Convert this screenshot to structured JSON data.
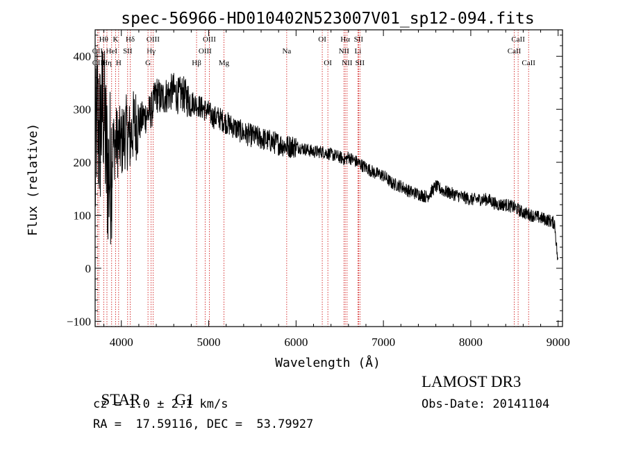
{
  "chart_data": {
    "type": "line",
    "title": "spec-56966-HD010402N523007V01_sp12-094.fits",
    "xlabel": "Wavelength (Å)",
    "ylabel": "Flux (relative)",
    "xlim": [
      3700,
      9050
    ],
    "ylim": [
      -110,
      450
    ],
    "x_ticks": [
      4000,
      5000,
      6000,
      7000,
      8000,
      9000
    ],
    "x_tick_labels": [
      "4000",
      "5000",
      "6000",
      "7000",
      "8000",
      "9000"
    ],
    "y_ticks": [
      -100,
      0,
      100,
      200,
      300,
      400
    ],
    "y_tick_labels": [
      "−100",
      "0",
      "100",
      "200",
      "300",
      "400"
    ],
    "grid": false,
    "line_color": "#000000",
    "marker_color": "#cc0000",
    "series": [
      {
        "name": "flux",
        "x": [
          3700,
          3720,
          3750,
          3780,
          3800,
          3830,
          3860,
          3900,
          3950,
          4000,
          4050,
          4100,
          4150,
          4200,
          4250,
          4300,
          4350,
          4400,
          4450,
          4500,
          4550,
          4600,
          4650,
          4700,
          4750,
          4800,
          4850,
          4900,
          4950,
          5000,
          5050,
          5100,
          5150,
          5200,
          5300,
          5400,
          5500,
          5600,
          5700,
          5800,
          5900,
          6000,
          6100,
          6200,
          6300,
          6400,
          6500,
          6560,
          6600,
          6700,
          6800,
          6900,
          7000,
          7100,
          7200,
          7300,
          7400,
          7500,
          7600,
          7700,
          7800,
          7900,
          8000,
          8100,
          8200,
          8300,
          8400,
          8500,
          8600,
          8700,
          8800,
          8900,
          8960,
          9000
        ],
        "y": [
          160,
          290,
          240,
          300,
          310,
          200,
          175,
          230,
          240,
          235,
          260,
          245,
          275,
          270,
          285,
          290,
          300,
          330,
          320,
          325,
          330,
          335,
          325,
          330,
          320,
          315,
          310,
          305,
          300,
          295,
          285,
          285,
          280,
          275,
          265,
          255,
          250,
          245,
          240,
          235,
          230,
          230,
          225,
          220,
          220,
          215,
          210,
          205,
          210,
          200,
          190,
          180,
          175,
          160,
          155,
          145,
          140,
          135,
          155,
          145,
          140,
          135,
          130,
          130,
          130,
          120,
          120,
          115,
          105,
          100,
          95,
          90,
          85,
          5
        ]
      }
    ],
    "line_markers": [
      {
        "name": "Hθ",
        "wavelength": 3798,
        "row": 0
      },
      {
        "name": "OII",
        "wavelength": 3727,
        "row": 1
      },
      {
        "name": "OIII",
        "wavelength": 3742,
        "row": 2
      },
      {
        "name": "K",
        "wavelength": 3934,
        "row": 0
      },
      {
        "name": "HeI",
        "wavelength": 3889,
        "row": 1
      },
      {
        "name": "Hη",
        "wavelength": 3835,
        "row": 2
      },
      {
        "name": "H",
        "wavelength": 3969,
        "row": 2
      },
      {
        "name": "Hδ",
        "wavelength": 4102,
        "row": 0
      },
      {
        "name": "SII",
        "wavelength": 4072,
        "row": 1
      },
      {
        "name": "OIII",
        "wavelength": 4363,
        "row": 0
      },
      {
        "name": "Hγ",
        "wavelength": 4341,
        "row": 1
      },
      {
        "name": "G",
        "wavelength": 4305,
        "row": 2
      },
      {
        "name": "OIII",
        "wavelength": 5007,
        "row": 0
      },
      {
        "name": "OIII",
        "wavelength": 4959,
        "row": 1
      },
      {
        "name": "Hβ",
        "wavelength": 4861,
        "row": 2
      },
      {
        "name": "Mg",
        "wavelength": 5175,
        "row": 2
      },
      {
        "name": "Na",
        "wavelength": 5893,
        "row": 1
      },
      {
        "name": "OI",
        "wavelength": 6300,
        "row": 0
      },
      {
        "name": "OI",
        "wavelength": 6364,
        "row": 2
      },
      {
        "name": "Hα",
        "wavelength": 6563,
        "row": 0
      },
      {
        "name": "NII",
        "wavelength": 6548,
        "row": 1
      },
      {
        "name": "NII",
        "wavelength": 6584,
        "row": 2
      },
      {
        "name": "SII",
        "wavelength": 6716,
        "row": 0
      },
      {
        "name": "Li",
        "wavelength": 6708,
        "row": 1
      },
      {
        "name": "SII",
        "wavelength": 6731,
        "row": 2
      },
      {
        "name": "CaII",
        "wavelength": 8542,
        "row": 0
      },
      {
        "name": "CaII",
        "wavelength": 8498,
        "row": 1
      },
      {
        "name": "CaII",
        "wavelength": 8662,
        "row": 2
      }
    ]
  },
  "info": {
    "object_class": "STAR",
    "subclass": "G1",
    "cz": "cz = 1.0 ± 2.1 km/s",
    "coords": "RA =  17.59116, DEC =  53.79927",
    "survey": "LAMOST DR3",
    "obs_date": "Obs-Date: 20141104"
  }
}
